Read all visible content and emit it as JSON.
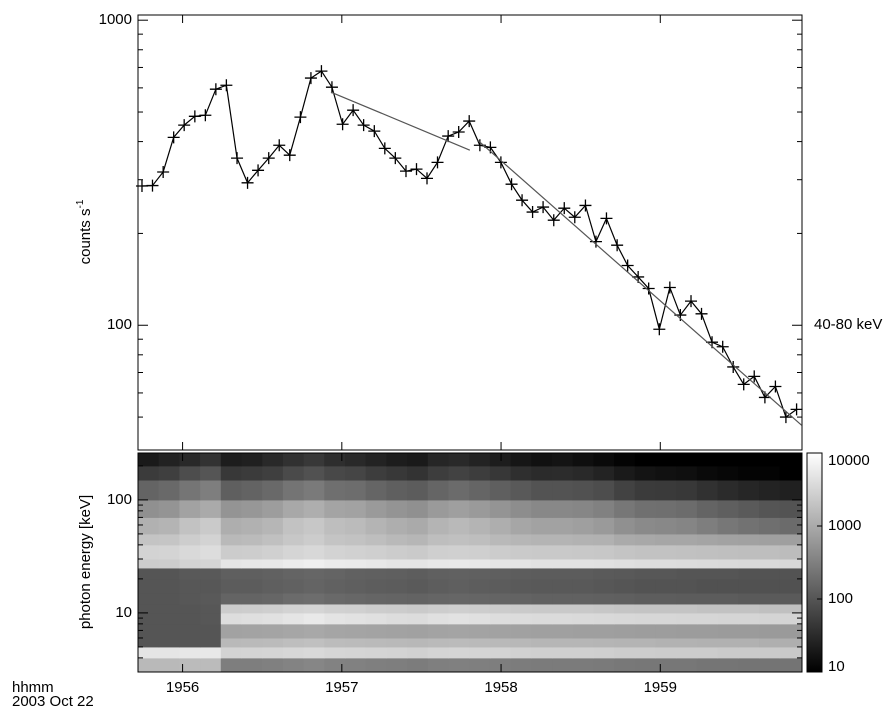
{
  "chart_data": [
    {
      "type": "line",
      "ylabel": "counts s",
      "ylabel_superscript": "-1",
      "annotation": "40-80 keV",
      "log_y": true,
      "xlim": [
        1955.72,
        1959.89
      ],
      "xticks": [
        1956,
        1957,
        1958,
        1959
      ],
      "ylim": [
        39,
        1040
      ],
      "yticks": [
        100,
        1000
      ],
      "yminorticks": [
        50,
        60,
        70,
        80,
        90,
        200,
        300,
        400,
        500,
        600,
        700,
        800,
        900
      ],
      "series": [
        {
          "color": "#000000",
          "marker": "+",
          "x": [
            1955.745,
            1955.811,
            1955.878,
            1955.944,
            1956.01,
            1956.077,
            1956.143,
            1956.209,
            1956.275,
            1956.342,
            1956.408,
            1956.474,
            1956.541,
            1956.607,
            1956.673,
            1956.74,
            1956.806,
            1956.872,
            1956.938,
            1957.005,
            1957.071,
            1957.137,
            1957.204,
            1957.27,
            1957.336,
            1957.403,
            1957.469,
            1957.535,
            1957.601,
            1957.668,
            1957.734,
            1957.8,
            1957.867,
            1957.933,
            1957.999,
            1958.066,
            1958.132,
            1958.198,
            1958.264,
            1958.331,
            1958.397,
            1958.463,
            1958.53,
            1958.596,
            1958.662,
            1958.729,
            1958.795,
            1958.861,
            1958.927,
            1958.994,
            1959.06,
            1959.126,
            1959.193,
            1959.259,
            1959.325,
            1959.392,
            1959.458,
            1959.524,
            1959.59,
            1959.657,
            1959.723,
            1959.789,
            1959.856
          ],
          "values": [
            286,
            287,
            318,
            413,
            453,
            484,
            488,
            594,
            612,
            353,
            293,
            322,
            353,
            389,
            361,
            481,
            646,
            681,
            603,
            456,
            507,
            453,
            433,
            380,
            353,
            320,
            325,
            303,
            342,
            417,
            430,
            467,
            389,
            383,
            342,
            290,
            257,
            235,
            244,
            221,
            242,
            226,
            247,
            188,
            224,
            183,
            157,
            144,
            132,
            97,
            133,
            108,
            120,
            109,
            88,
            85,
            73,
            64,
            68,
            58,
            63,
            50,
            53
          ]
        },
        {
          "color": "#555555",
          "x": [
            1956.932,
            1957.804
          ],
          "values": [
            581,
            375
          ]
        },
        {
          "color": "#555555",
          "x": [
            1957.854,
            1959.888
          ],
          "values": [
            404,
            47
          ]
        }
      ]
    },
    {
      "type": "heatmap",
      "ylabel": "photon energy [keV]",
      "xlabel": "hhmm",
      "date": "2003 Oct 22",
      "log_y": true,
      "xlim": [
        1955.72,
        1959.89
      ],
      "xticks": [
        1956,
        1957,
        1958,
        1959
      ],
      "ylim": [
        3,
        260
      ],
      "yticks": [
        10,
        100
      ],
      "yminorticks": [
        4,
        5,
        6,
        7,
        8,
        9,
        20,
        30,
        40,
        50,
        60,
        70,
        80,
        90,
        200
      ],
      "x_edges": [
        1955.72,
        1955.85,
        1955.98,
        1956.11,
        1956.24,
        1956.37,
        1956.5,
        1956.63,
        1956.76,
        1956.89,
        1957.02,
        1957.15,
        1957.28,
        1957.41,
        1957.54,
        1957.67,
        1957.8,
        1957.93,
        1958.06,
        1958.19,
        1958.32,
        1958.45,
        1958.58,
        1958.71,
        1958.84,
        1958.97,
        1959.1,
        1959.23,
        1959.36,
        1959.49,
        1959.62,
        1959.75,
        1959.89
      ],
      "y_edges": [
        3,
        4,
        5,
        6,
        8,
        10,
        12,
        15,
        20,
        25,
        30,
        40,
        50,
        70,
        100,
        150,
        200,
        260
      ],
      "z": [
        [
          1500,
          1500,
          1600,
          1600,
          300,
          300,
          320,
          350,
          380,
          340,
          330,
          310,
          300,
          290,
          310,
          320,
          310,
          300,
          290,
          280,
          280,
          280,
          270,
          260,
          250,
          250,
          250,
          240,
          240,
          230,
          230,
          230
        ],
        [
          5000,
          5000,
          5200,
          5300,
          3000,
          3100,
          3200,
          3400,
          3600,
          3300,
          3200,
          3100,
          3000,
          2900,
          3100,
          3200,
          3100,
          3000,
          2900,
          2800,
          2800,
          2800,
          2700,
          2600,
          2600,
          2500,
          2500,
          2500,
          2400,
          2400,
          2400,
          2300
        ],
        [
          100,
          100,
          100,
          100,
          1500,
          1550,
          1600,
          1700,
          1800,
          1650,
          1600,
          1550,
          1500,
          1450,
          1550,
          1600,
          1550,
          1500,
          1450,
          1400,
          1400,
          1400,
          1350,
          1300,
          1300,
          1250,
          1250,
          1200,
          1200,
          1200,
          1150,
          1150
        ],
        [
          100,
          100,
          100,
          100,
          800,
          820,
          850,
          900,
          950,
          880,
          860,
          830,
          800,
          780,
          830,
          850,
          830,
          800,
          780,
          760,
          760,
          750,
          740,
          720,
          700,
          700,
          690,
          680,
          670,
          660,
          650,
          650
        ],
        [
          100,
          100,
          100,
          105,
          4000,
          4200,
          4400,
          5000,
          5500,
          4800,
          4600,
          4300,
          4000,
          3900,
          4300,
          4500,
          4300,
          4000,
          3900,
          3800,
          3800,
          3700,
          3600,
          3500,
          3400,
          3400,
          3300,
          3300,
          3200,
          3200,
          3100,
          3100
        ],
        [
          100,
          100,
          100,
          105,
          2500,
          2600,
          2700,
          3000,
          3200,
          2900,
          2800,
          2600,
          2500,
          2400,
          2600,
          2700,
          2600,
          2500,
          2400,
          2300,
          2300,
          2300,
          2200,
          2100,
          2000,
          2000,
          2000,
          1900,
          1900,
          1900,
          1800,
          1800
        ],
        [
          100,
          100,
          105,
          110,
          150,
          150,
          160,
          180,
          190,
          170,
          165,
          155,
          150,
          145,
          155,
          160,
          155,
          150,
          145,
          140,
          140,
          140,
          135,
          130,
          125,
          125,
          120,
          120,
          120,
          115,
          115,
          115
        ],
        [
          100,
          100,
          105,
          105,
          120,
          120,
          130,
          140,
          150,
          140,
          130,
          125,
          120,
          115,
          125,
          130,
          125,
          120,
          115,
          110,
          110,
          110,
          105,
          100,
          95,
          95,
          95,
          90,
          90,
          90,
          90,
          90
        ],
        [
          100,
          100,
          110,
          110,
          130,
          130,
          140,
          150,
          160,
          150,
          140,
          135,
          130,
          125,
          135,
          140,
          135,
          130,
          125,
          120,
          120,
          120,
          115,
          110,
          105,
          105,
          100,
          100,
          100,
          95,
          95,
          95
        ],
        [
          2500,
          2600,
          3000,
          3200,
          5000,
          5200,
          5400,
          6000,
          6500,
          5800,
          5600,
          5300,
          5000,
          4900,
          5300,
          5500,
          5300,
          5000,
          4800,
          4600,
          4600,
          4500,
          4400,
          4200,
          4000,
          4000,
          3900,
          3800,
          3700,
          3600,
          3600,
          3500
        ],
        [
          3000,
          3100,
          3600,
          4000,
          2500,
          2600,
          2800,
          3200,
          3500,
          3000,
          2900,
          2700,
          2500,
          2400,
          2700,
          2800,
          2700,
          2500,
          2400,
          2300,
          2300,
          2250,
          2200,
          2000,
          1900,
          1900,
          1850,
          1800,
          1750,
          1700,
          1700,
          1650
        ],
        [
          2000,
          2100,
          2600,
          3000,
          1500,
          1600,
          1800,
          2200,
          2500,
          2000,
          1900,
          1700,
          1500,
          1400,
          1700,
          1800,
          1700,
          1500,
          1400,
          1300,
          1300,
          1250,
          1200,
          1000,
          950,
          900,
          900,
          850,
          800,
          780,
          760,
          740
        ],
        [
          1200,
          1300,
          1900,
          2400,
          1100,
          1200,
          1400,
          1900,
          2200,
          1700,
          1600,
          1300,
          1100,
          1000,
          1300,
          1500,
          1300,
          1100,
          900,
          800,
          800,
          750,
          650,
          500,
          420,
          400,
          370,
          300,
          250,
          220,
          200,
          180
        ],
        [
          500,
          550,
          800,
          1000,
          550,
          600,
          700,
          950,
          1100,
          850,
          800,
          650,
          550,
          500,
          650,
          750,
          650,
          550,
          450,
          400,
          400,
          380,
          330,
          250,
          210,
          200,
          185,
          150,
          130,
          115,
          100,
          95
        ],
        [
          150,
          170,
          240,
          300,
          130,
          145,
          170,
          230,
          270,
          200,
          190,
          155,
          130,
          120,
          155,
          180,
          155,
          130,
          110,
          95,
          95,
          90,
          80,
          60,
          50,
          48,
          45,
          38,
          32,
          28,
          26,
          24
        ],
        [
          50,
          55,
          80,
          100,
          45,
          50,
          55,
          75,
          90,
          70,
          65,
          52,
          45,
          40,
          52,
          60,
          52,
          44,
          36,
          32,
          33,
          30,
          26,
          20,
          17,
          16,
          15,
          13,
          12,
          11,
          11,
          10
        ],
        [
          20,
          25,
          30,
          40,
          22,
          24,
          30,
          38,
          45,
          35,
          30,
          26,
          22,
          20,
          28,
          30,
          26,
          22,
          18,
          16,
          17,
          15,
          13,
          11,
          10,
          10,
          10,
          10,
          10,
          10,
          10,
          10
        ]
      ],
      "colorbar": {
        "log": true,
        "lim": [
          10,
          10000
        ],
        "ticks": [
          10,
          100,
          1000,
          10000
        ]
      }
    }
  ]
}
